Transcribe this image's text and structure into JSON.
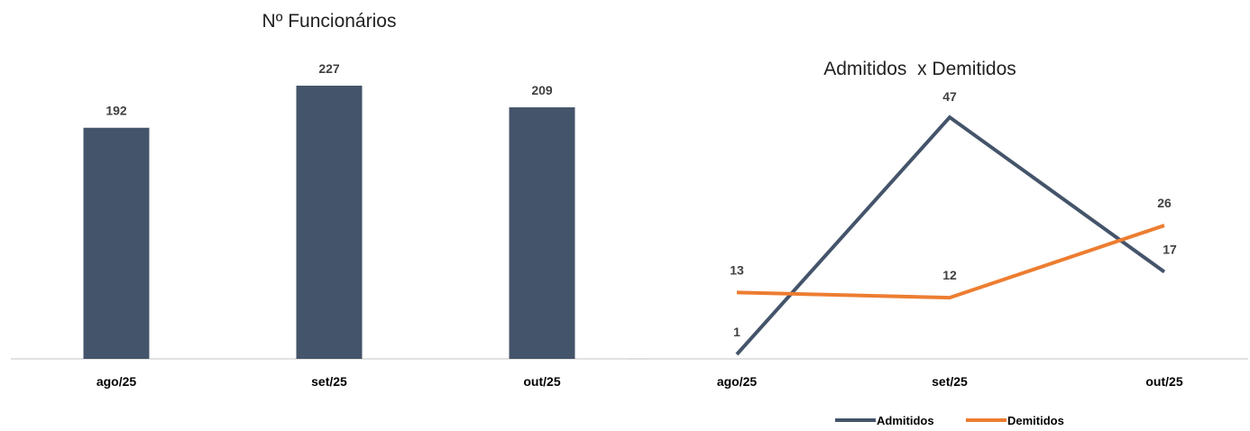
{
  "chart_data": [
    {
      "type": "bar",
      "title": "Nº Funcionários",
      "categories": [
        "ago/25",
        "set/25",
        "out/25"
      ],
      "values": [
        192,
        227,
        209
      ],
      "ylim": [
        0,
        227
      ],
      "grid": false,
      "color": "#44546A"
    },
    {
      "type": "line",
      "title": "Admitidos  x Demitidos",
      "categories": [
        "ago/25",
        "set/25",
        "out/25"
      ],
      "series": [
        {
          "name": "Admitidos",
          "values": [
            1,
            47,
            17
          ],
          "color": "#44546A"
        },
        {
          "name": "Demitidos",
          "values": [
            13,
            12,
            26
          ],
          "color": "#ED7D31"
        }
      ],
      "ylim": [
        0,
        47
      ],
      "grid": false,
      "legend": "bottom"
    }
  ]
}
